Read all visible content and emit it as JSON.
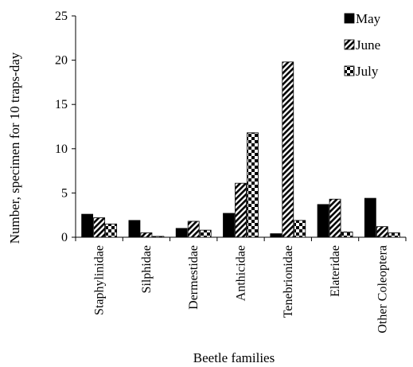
{
  "chart_data": {
    "type": "bar",
    "xlabel": "Beetle families",
    "ylabel": "Number, specimen for 10 traps-day",
    "ylim": [
      0,
      25
    ],
    "yticks": [
      0,
      5,
      10,
      15,
      20,
      25
    ],
    "grid": false,
    "legend_position": "top-right",
    "categories": [
      "Staphylinidae",
      "Silphidae",
      "Dermestidae",
      "Anthicidae",
      "Tenebrionidae",
      "Elateridae",
      "Other Coleoptera"
    ],
    "series": [
      {
        "name": "May",
        "fill": "solid-black",
        "values": [
          2.6,
          1.9,
          1.0,
          2.7,
          0.4,
          3.7,
          4.4
        ]
      },
      {
        "name": "June",
        "fill": "diagonal-stripes",
        "values": [
          2.2,
          0.5,
          1.8,
          6.1,
          19.8,
          4.3,
          1.2
        ]
      },
      {
        "name": "July",
        "fill": "checkerboard",
        "values": [
          1.5,
          0.1,
          0.8,
          11.8,
          1.9,
          0.6,
          0.5
        ]
      }
    ]
  }
}
